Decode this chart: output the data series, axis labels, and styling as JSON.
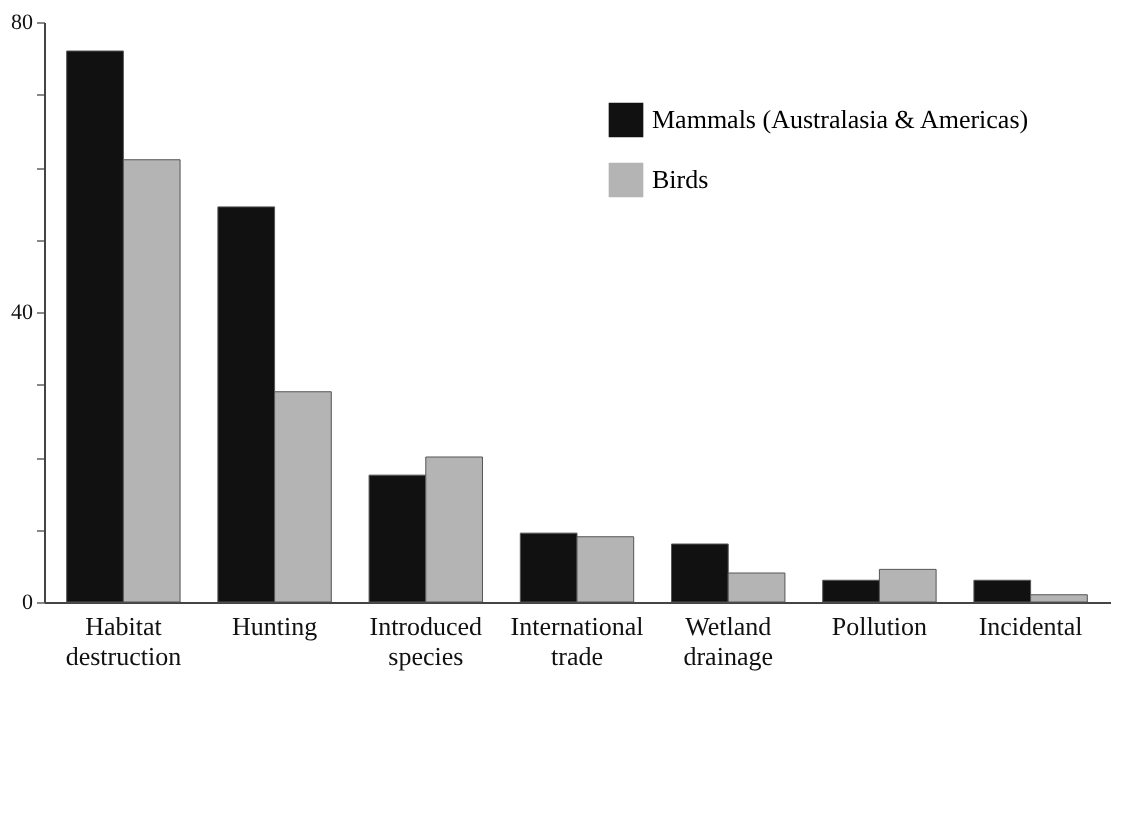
{
  "chart_data": {
    "type": "bar",
    "categories": [
      "Habitat destruction",
      "Hunting",
      "Introduced species",
      "International trade",
      "Wetland drainage",
      "Pollution",
      "Incidental"
    ],
    "series": [
      {
        "name": "Mammals (Australasia & Americas)",
        "color": "#111111",
        "values": [
          76,
          54.5,
          17.5,
          9.5,
          8,
          3,
          3
        ]
      },
      {
        "name": "Birds",
        "color": "#b4b4b4",
        "values": [
          61,
          29,
          20,
          9,
          4,
          4.5,
          1
        ]
      }
    ],
    "ylim": [
      0,
      80
    ],
    "yticks": [
      0,
      {
        "value": 10,
        "label": null
      },
      {
        "value": 20,
        "label": null
      },
      {
        "value": 30,
        "label": null
      },
      40,
      {
        "value": 50,
        "label": null
      },
      {
        "value": 60,
        "label": null
      },
      {
        "value": 70,
        "label": null
      },
      80
    ],
    "grid": false,
    "legend": "top right"
  }
}
